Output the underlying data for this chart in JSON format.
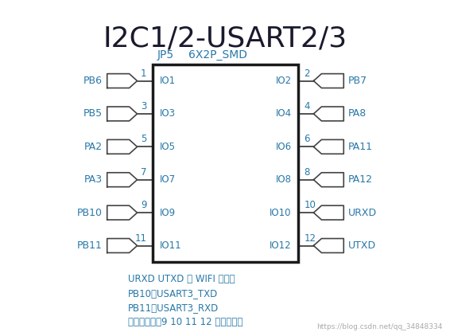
{
  "title": "I2C1/2-USART2/3",
  "title_fontsize": 26,
  "title_color": "#1a1a2e",
  "bg_color": "#ffffff",
  "chip_label_left": "JP5",
  "chip_label_right": "6X2P_SMD",
  "chip_label_fontsize": 10,
  "text_color": "#2878a8",
  "box_line_color": "#1a1a1a",
  "conn_line_color": "#444444",
  "left_pins": [
    {
      "num": "1",
      "io": "IO1",
      "label": "PB6"
    },
    {
      "num": "3",
      "io": "IO3",
      "label": "PB5"
    },
    {
      "num": "5",
      "io": "IO5",
      "label": "PA2"
    },
    {
      "num": "7",
      "io": "IO7",
      "label": "PA3"
    },
    {
      "num": "9",
      "io": "IO9",
      "label": "PB10"
    },
    {
      "num": "11",
      "io": "IO11",
      "label": "PB11"
    }
  ],
  "right_pins": [
    {
      "num": "2",
      "io": "IO2",
      "label": "PB7"
    },
    {
      "num": "4",
      "io": "IO4",
      "label": "PA8"
    },
    {
      "num": "6",
      "io": "IO6",
      "label": "PA11"
    },
    {
      "num": "8",
      "io": "IO8",
      "label": "PA12"
    },
    {
      "num": "10",
      "io": "IO10",
      "label": "URXD"
    },
    {
      "num": "12",
      "io": "IO12",
      "label": "UTXD"
    }
  ],
  "notes": [
    "URXD UTXD 是 WIFI 的接口",
    "PB10：USART3_TXD",
    "PB11：USART3_RXD",
    "默认情况下，9 10 11 12 用跳帽短接"
  ],
  "watermark": "https://blog.csdn.net/qq_34848334"
}
